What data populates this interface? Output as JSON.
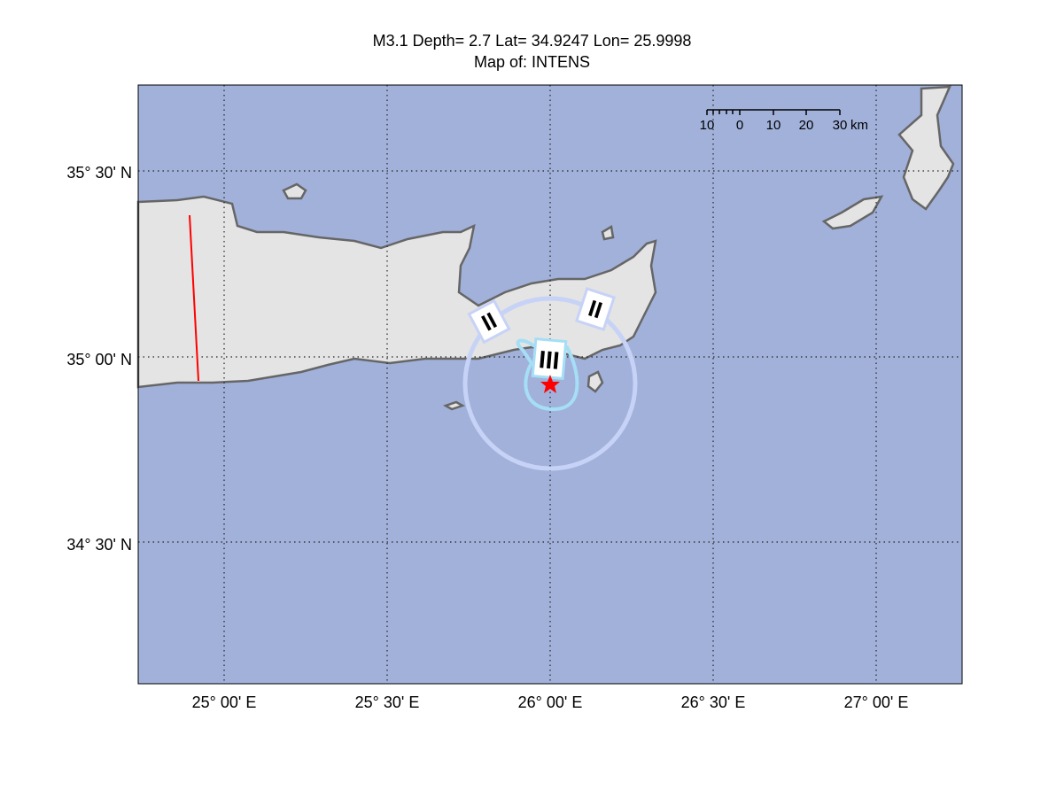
{
  "title": {
    "line1": "M3.1 Depth= 2.7 Lat= 34.9247 Lon= 25.9998",
    "line2": "Map of: INTENS"
  },
  "axes": {
    "lat_ticks": [
      "35° 30' N",
      "35° 00' N",
      "34° 30' N"
    ],
    "lon_ticks": [
      "25° 00' E",
      "25° 30' E",
      "26° 00' E",
      "26° 30' E",
      "27° 00' E"
    ]
  },
  "scale_bar": {
    "labels": [
      "10",
      "0",
      "10",
      "20",
      "30"
    ],
    "unit": "km"
  },
  "intensity_labels": [
    "II",
    "II",
    "III"
  ],
  "epicenter": {
    "lat": 34.9247,
    "lon": 25.9998,
    "icon": "star-icon"
  },
  "colors": {
    "sea": "#a1b1da",
    "land": "#e4e4e4",
    "coast": "#666666",
    "contour_ii": "#c7d2f7",
    "contour_iii": "#a6def5",
    "epicenter": "#ff0000",
    "fault": "#ff0000"
  }
}
